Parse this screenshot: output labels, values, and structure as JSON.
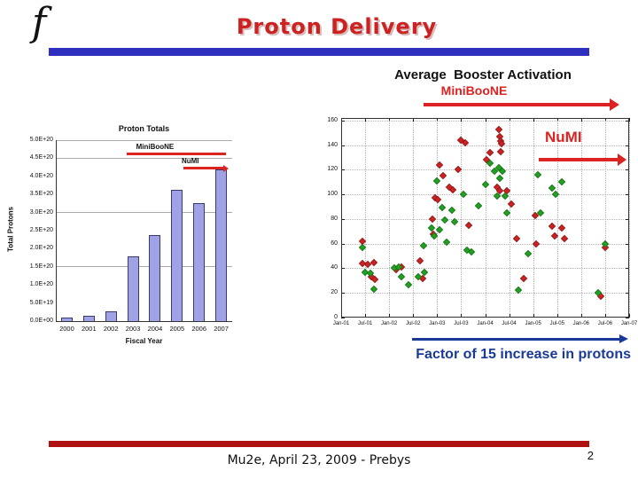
{
  "header": {
    "logo_letter": "f",
    "title": "Proton Delivery"
  },
  "booster_header": {
    "title": "Average  Booster Activation",
    "subtitle": "MiniBooNE"
  },
  "factor_note": "Factor of 15 increase in protons",
  "footer": {
    "credit": "Mu2e, April 23, 2009 - Prebys",
    "page_number": "2"
  },
  "colors": {
    "header_bar_blue": "#2f2fbf",
    "footer_bar_red": "#b01111",
    "title_red": "#cc2222",
    "annotation_red": "#dd2222",
    "deep_blue": "#1a3a99",
    "bar_fill": "#9fa3e6",
    "bar_border": "#3a3a6e",
    "scatter_red": "#cc2222",
    "scatter_green": "#22a022",
    "grid_gray": "#aaaaaa"
  },
  "chart_data": [
    {
      "id": "proton-totals",
      "type": "bar",
      "title": "Proton Totals",
      "xlabel": "Fiscal Year",
      "ylabel": "Total Protons",
      "categories": [
        "2000",
        "2001",
        "2002",
        "2003",
        "2004",
        "2005",
        "2006",
        "2007"
      ],
      "values": [
        0.1,
        0.14,
        0.27,
        1.79,
        2.38,
        3.63,
        3.26,
        4.18
      ],
      "value_unit": "x1E20 protons",
      "ylim": [
        0,
        5.0
      ],
      "ytick_labels": [
        "0.0E+00",
        "5.0E+19",
        "1.0E+20",
        "1.5E+20",
        "2.0E+20",
        "2.5E+20",
        "3.0E+20",
        "3.5E+20",
        "4.0E+20",
        "4.5E+20",
        "5.0E+20"
      ],
      "gridlines_at": [
        1.5,
        3.0,
        4.5,
        5.0
      ],
      "annotations": [
        {
          "label": "MiniBooNE",
          "x_from": 2002.7,
          "x_to": 2007.2,
          "y": 4.62,
          "label_x": 2004.0,
          "arrow": false
        },
        {
          "label": "NuMI",
          "x_from": 2005.3,
          "x_to": 2007.15,
          "y": 4.22,
          "label_x": 2005.6,
          "arrow": true
        }
      ]
    },
    {
      "id": "booster-activation",
      "type": "scatter",
      "title": "Average Booster Activation",
      "x_unit": "years since Jan-2001",
      "x_tick_labels": [
        "Jan-01",
        "Jul-01",
        "Jan-02",
        "Jul-02",
        "Jan-03",
        "Jul-03",
        "Jan-04",
        "Jul-04",
        "Jan-05",
        "Jul-05",
        "Jan-06",
        "Jul-06",
        "Jan-07"
      ],
      "xlim": [
        0,
        6
      ],
      "ylim": [
        0,
        162
      ],
      "yticks": [
        0,
        20,
        40,
        60,
        80,
        100,
        120,
        140,
        160
      ],
      "grid": true,
      "series": [
        {
          "name": "MiniBooNE",
          "color": "#cc2222",
          "points": [
            [
              0.44,
              62
            ],
            [
              0.45,
              44
            ],
            [
              0.55,
              43
            ],
            [
              0.62,
              33
            ],
            [
              0.68,
              45
            ],
            [
              0.7,
              31
            ],
            [
              1.14,
              39
            ],
            [
              1.26,
              41
            ],
            [
              1.64,
              46
            ],
            [
              1.7,
              32
            ],
            [
              1.9,
              80
            ],
            [
              1.92,
              68
            ],
            [
              1.96,
              97
            ],
            [
              2.02,
              96
            ],
            [
              2.04,
              124
            ],
            [
              2.12,
              115
            ],
            [
              2.26,
              106
            ],
            [
              2.32,
              104
            ],
            [
              2.44,
              120
            ],
            [
              2.5,
              144
            ],
            [
              2.58,
              142
            ],
            [
              2.66,
              75
            ],
            [
              3.02,
              128
            ],
            [
              3.1,
              134
            ],
            [
              3.28,
              153
            ],
            [
              3.3,
              147
            ],
            [
              3.32,
              143
            ],
            [
              3.34,
              141
            ],
            [
              3.33,
              135
            ],
            [
              3.25,
              106
            ],
            [
              3.31,
              103
            ],
            [
              3.46,
              103
            ],
            [
              3.55,
              92
            ],
            [
              3.65,
              64
            ],
            [
              3.8,
              32
            ],
            [
              4.04,
              83
            ],
            [
              4.06,
              60
            ],
            [
              4.4,
              74
            ],
            [
              4.44,
              66
            ],
            [
              4.6,
              73
            ],
            [
              4.66,
              64
            ],
            [
              5.4,
              17
            ],
            [
              5.5,
              57
            ]
          ]
        },
        {
          "name": "NuMI",
          "color": "#22a022",
          "points": [
            [
              0.44,
              57
            ],
            [
              0.5,
              37
            ],
            [
              0.6,
              36
            ],
            [
              0.68,
              23
            ],
            [
              1.1,
              40
            ],
            [
              1.2,
              41
            ],
            [
              1.26,
              33
            ],
            [
              1.4,
              27
            ],
            [
              1.6,
              33
            ],
            [
              1.74,
              37
            ],
            [
              1.72,
              58
            ],
            [
              1.88,
              73
            ],
            [
              1.94,
              66
            ],
            [
              2.0,
              111
            ],
            [
              2.04,
              71
            ],
            [
              2.1,
              89
            ],
            [
              2.16,
              79
            ],
            [
              2.2,
              61
            ],
            [
              2.3,
              87
            ],
            [
              2.36,
              78
            ],
            [
              2.54,
              100
            ],
            [
              2.62,
              55
            ],
            [
              2.72,
              53
            ],
            [
              2.86,
              91
            ],
            [
              3.0,
              108
            ],
            [
              3.1,
              125
            ],
            [
              3.2,
              119
            ],
            [
              3.28,
              122
            ],
            [
              3.3,
              113
            ],
            [
              3.24,
              99
            ],
            [
              3.36,
              119
            ],
            [
              3.42,
              99
            ],
            [
              3.46,
              85
            ],
            [
              3.7,
              22
            ],
            [
              3.9,
              52
            ],
            [
              4.1,
              116
            ],
            [
              4.16,
              85
            ],
            [
              4.4,
              105
            ],
            [
              4.46,
              100
            ],
            [
              4.6,
              110
            ],
            [
              5.35,
              20
            ],
            [
              5.5,
              60
            ]
          ]
        }
      ],
      "annotations": [
        {
          "label": "NuMI",
          "label_x": 4.63,
          "label_y": 146,
          "arrow_x0": 4.12,
          "arrow_x1": 5.8,
          "arrow_y": 128
        }
      ]
    }
  ]
}
